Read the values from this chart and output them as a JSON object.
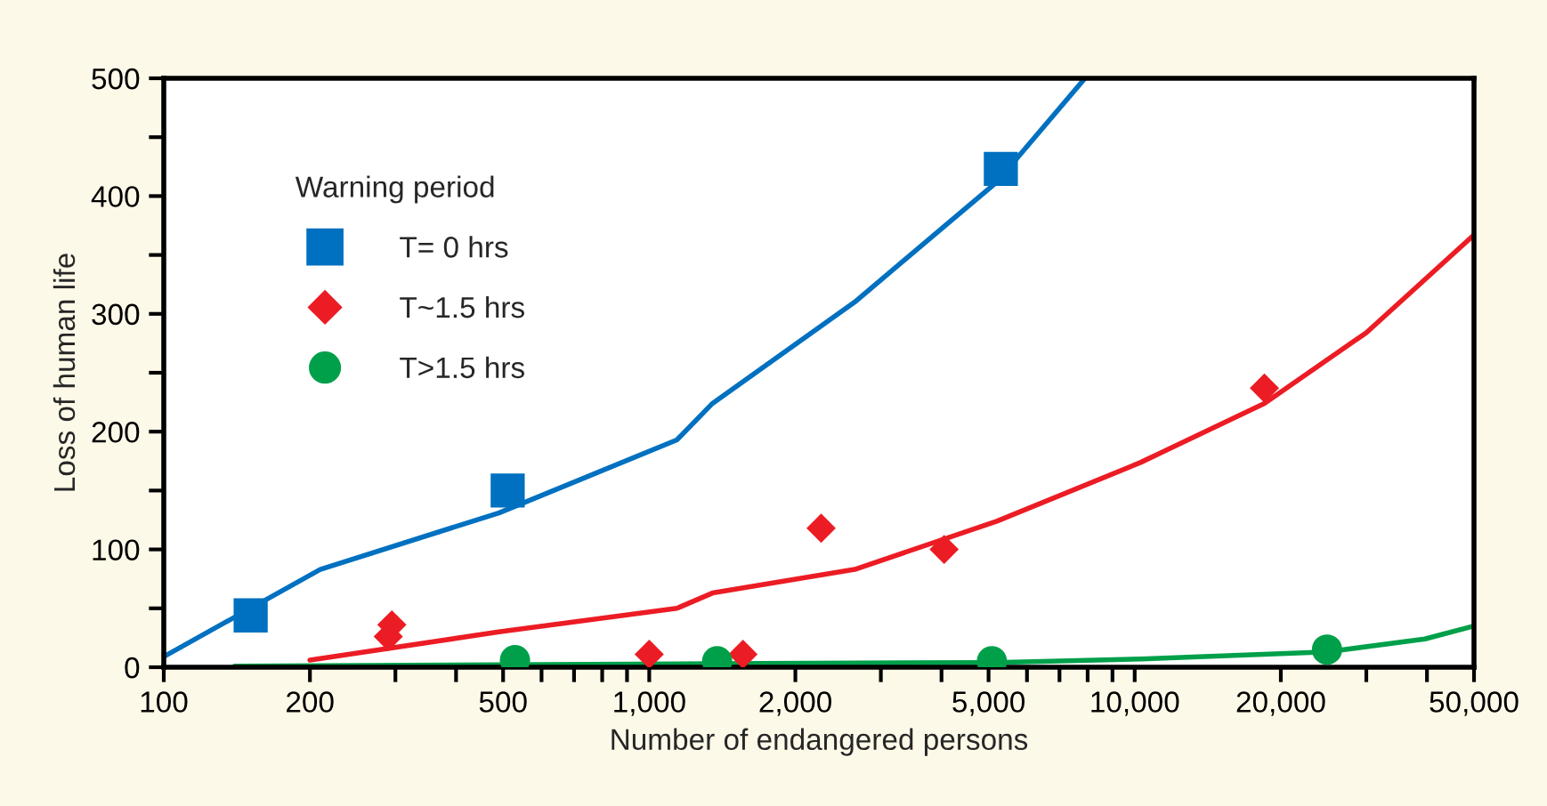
{
  "chart_data": {
    "type": "scatter",
    "xlabel": "Number of endangered persons",
    "ylabel": "Loss of human life",
    "legend_title": "Warning period",
    "legend": "top left",
    "grid": false,
    "log": "x",
    "xlim": [
      100,
      50000
    ],
    "ylim": [
      0,
      500
    ],
    "xticks": [
      100,
      200,
      {
        "value": 300,
        "label": null
      },
      {
        "value": 400,
        "label": null
      },
      500,
      {
        "value": 600,
        "label": null
      },
      {
        "value": 700,
        "label": null
      },
      {
        "value": 800,
        "label": null
      },
      {
        "value": 900,
        "label": null
      },
      {
        "value": 1000,
        "label": "1,000"
      },
      {
        "value": 2000,
        "label": "2,000"
      },
      {
        "value": 3000,
        "label": null
      },
      {
        "value": 4000,
        "label": null
      },
      {
        "value": 5000,
        "label": "5,000"
      },
      {
        "value": 6000,
        "label": null
      },
      {
        "value": 7000,
        "label": null
      },
      {
        "value": 8000,
        "label": null
      },
      {
        "value": 9000,
        "label": null
      },
      {
        "value": 10000,
        "label": "10,000"
      },
      {
        "value": 20000,
        "label": "20,000"
      },
      {
        "value": 30000,
        "label": null
      },
      {
        "value": 40000,
        "label": null
      },
      {
        "value": 50000,
        "label": "50,000"
      }
    ],
    "yticks": [
      0,
      {
        "value": 50,
        "label": null
      },
      100,
      {
        "value": 150,
        "label": null
      },
      200,
      {
        "value": 250,
        "label": null
      },
      300,
      {
        "value": 350,
        "label": null
      },
      400,
      {
        "value": 450,
        "label": null
      },
      500
    ],
    "series": [
      {
        "type": "line",
        "color": "#0070c0",
        "x": [
          100,
          210,
          490,
          1140,
          1350,
          2650,
          5200,
          7900
        ],
        "values": [
          9,
          83,
          131,
          193,
          224,
          310,
          412,
          500
        ]
      },
      {
        "type": "line",
        "color": "#ec1c24",
        "x": [
          200,
          490,
          1140,
          1350,
          2650,
          5200,
          10300,
          18500,
          30000,
          50000
        ],
        "values": [
          6,
          30,
          50,
          63,
          83,
          124,
          174,
          224,
          284,
          367
        ]
      },
      {
        "type": "line",
        "color": "#00a04a",
        "x": [
          140,
          1350,
          5200,
          10300,
          24900,
          39600,
          50000
        ],
        "values": [
          1,
          3,
          4,
          7,
          13,
          24,
          35
        ]
      },
      {
        "name": "T= 0 hrs",
        "color": "#0070c0",
        "marker": "square",
        "x": [
          151,
          511,
          5300
        ],
        "values": [
          44,
          150,
          423
        ]
      },
      {
        "name": "T~1.5 hrs",
        "color": "#ec1c24",
        "marker": "diamond",
        "x": [
          290,
          295,
          1000,
          1560,
          2260,
          4050,
          18500
        ],
        "values": [
          26,
          36,
          11,
          11,
          118,
          100,
          237
        ]
      },
      {
        "name": "T>1.5 hrs",
        "color": "#00a04a",
        "marker": "circle",
        "x": [
          529,
          1380,
          5080,
          24900
        ],
        "values": [
          6,
          5,
          5,
          15
        ]
      }
    ]
  }
}
